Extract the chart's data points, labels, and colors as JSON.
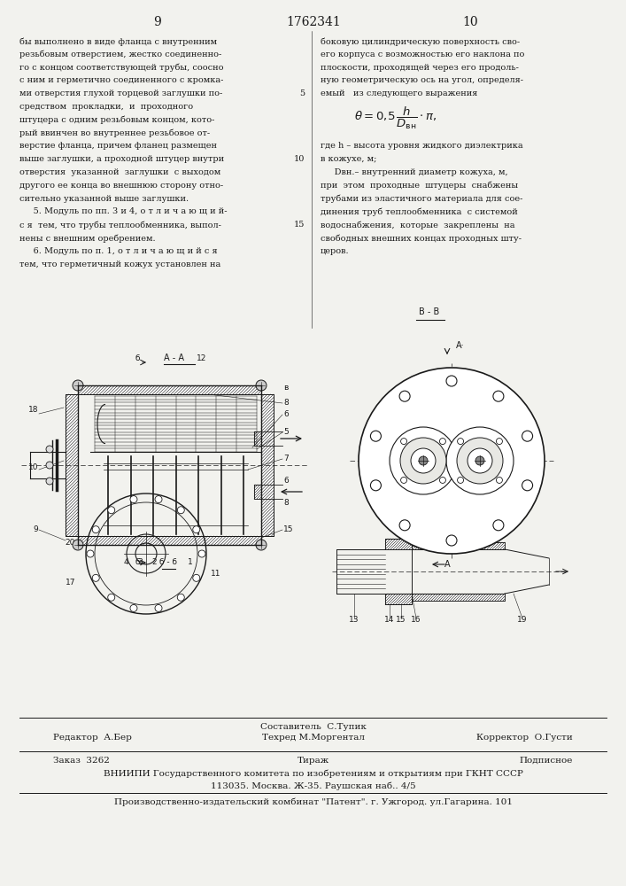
{
  "page_numbers_left": "9",
  "page_numbers_right": "10",
  "patent_number": "1762341",
  "background_color": "#f2f2ee",
  "text_color": "#1a1a1a",
  "footer_line1_left": "Редактор  А.Бер",
  "footer_line1_center_top": "Составитель  С.Тупик",
  "footer_line1_center_bottom": "Техред М.Моргентал",
  "footer_line1_right": "Корректор  О.Густи",
  "footer_line2_left": "Заказ  3262",
  "footer_line2_center": "Тираж",
  "footer_line2_right": "Подписное",
  "footer_line3": "ВНИИПИ Государственного комитета по изобретениям и открытиям при ГКНТ СССР",
  "footer_line4": "113035. Москва. Ж-35. Раушская наб.. 4/5",
  "footer_line5": "Производственно-издательский комбинат \"Патент\". г. Ужгород. ул.Гагарина. 101",
  "left_texts": [
    "бы выполнено в виде фланца с внутренним",
    "резьбовым отверстием, жестко соединенно-",
    "го с концом соответствующей трубы, соосно",
    "с ним и герметично соединенного с кромка-",
    "ми отверстия глухой торцевой заглушки по-",
    "средством  прокладки,  и  проходного",
    "штуцера с одним резьбовым концом, кото-",
    "рый ввинчен во внутреннее резьбовое от-",
    "верстие фланца, причем фланец размещен",
    "выше заглушки, а проходной штуцер внутри",
    "отверстия  указанной  заглушки  с выходом",
    "другого ее конца во внешнюю сторону отно-",
    "сительно указанной выше заглушки.",
    "     5. Модуль по пп. 3 и 4, о т л и ч а ю щ и й-",
    "с я  тем, что трубы теплообменника, выпол-",
    "нены с внешним оребрением.",
    "     6. Модуль по п. 1, о т л и ч а ю щ и й с я",
    "тем, что герметичный кожух установлен на"
  ],
  "right_texts": [
    "боковую цилиндрическую поверхность сво-",
    "его корпуса с возможностью его наклона по",
    "плоскости, проходящей через его продоль-",
    "ную геометрическую ось на угол, определя-",
    "емый   из следующего выражения",
    "",
    "",
    "",
    "где h – высота уровня жидкого диэлектрика",
    "в кожухе, м;",
    "     Dвн.– внутренний диаметр кожуха, м,",
    "при  этом  проходные  штуцеры  снабжены",
    "трубами из эластичного материала для сое-",
    "динения труб теплообменника  с системой",
    "водоснабжения,  которые  закреплены  на",
    "свободных внешних концах проходных шту-",
    "церов."
  ],
  "line_number_indices": [
    4,
    9,
    14
  ],
  "line_number_values": [
    "5",
    "10",
    "15"
  ]
}
